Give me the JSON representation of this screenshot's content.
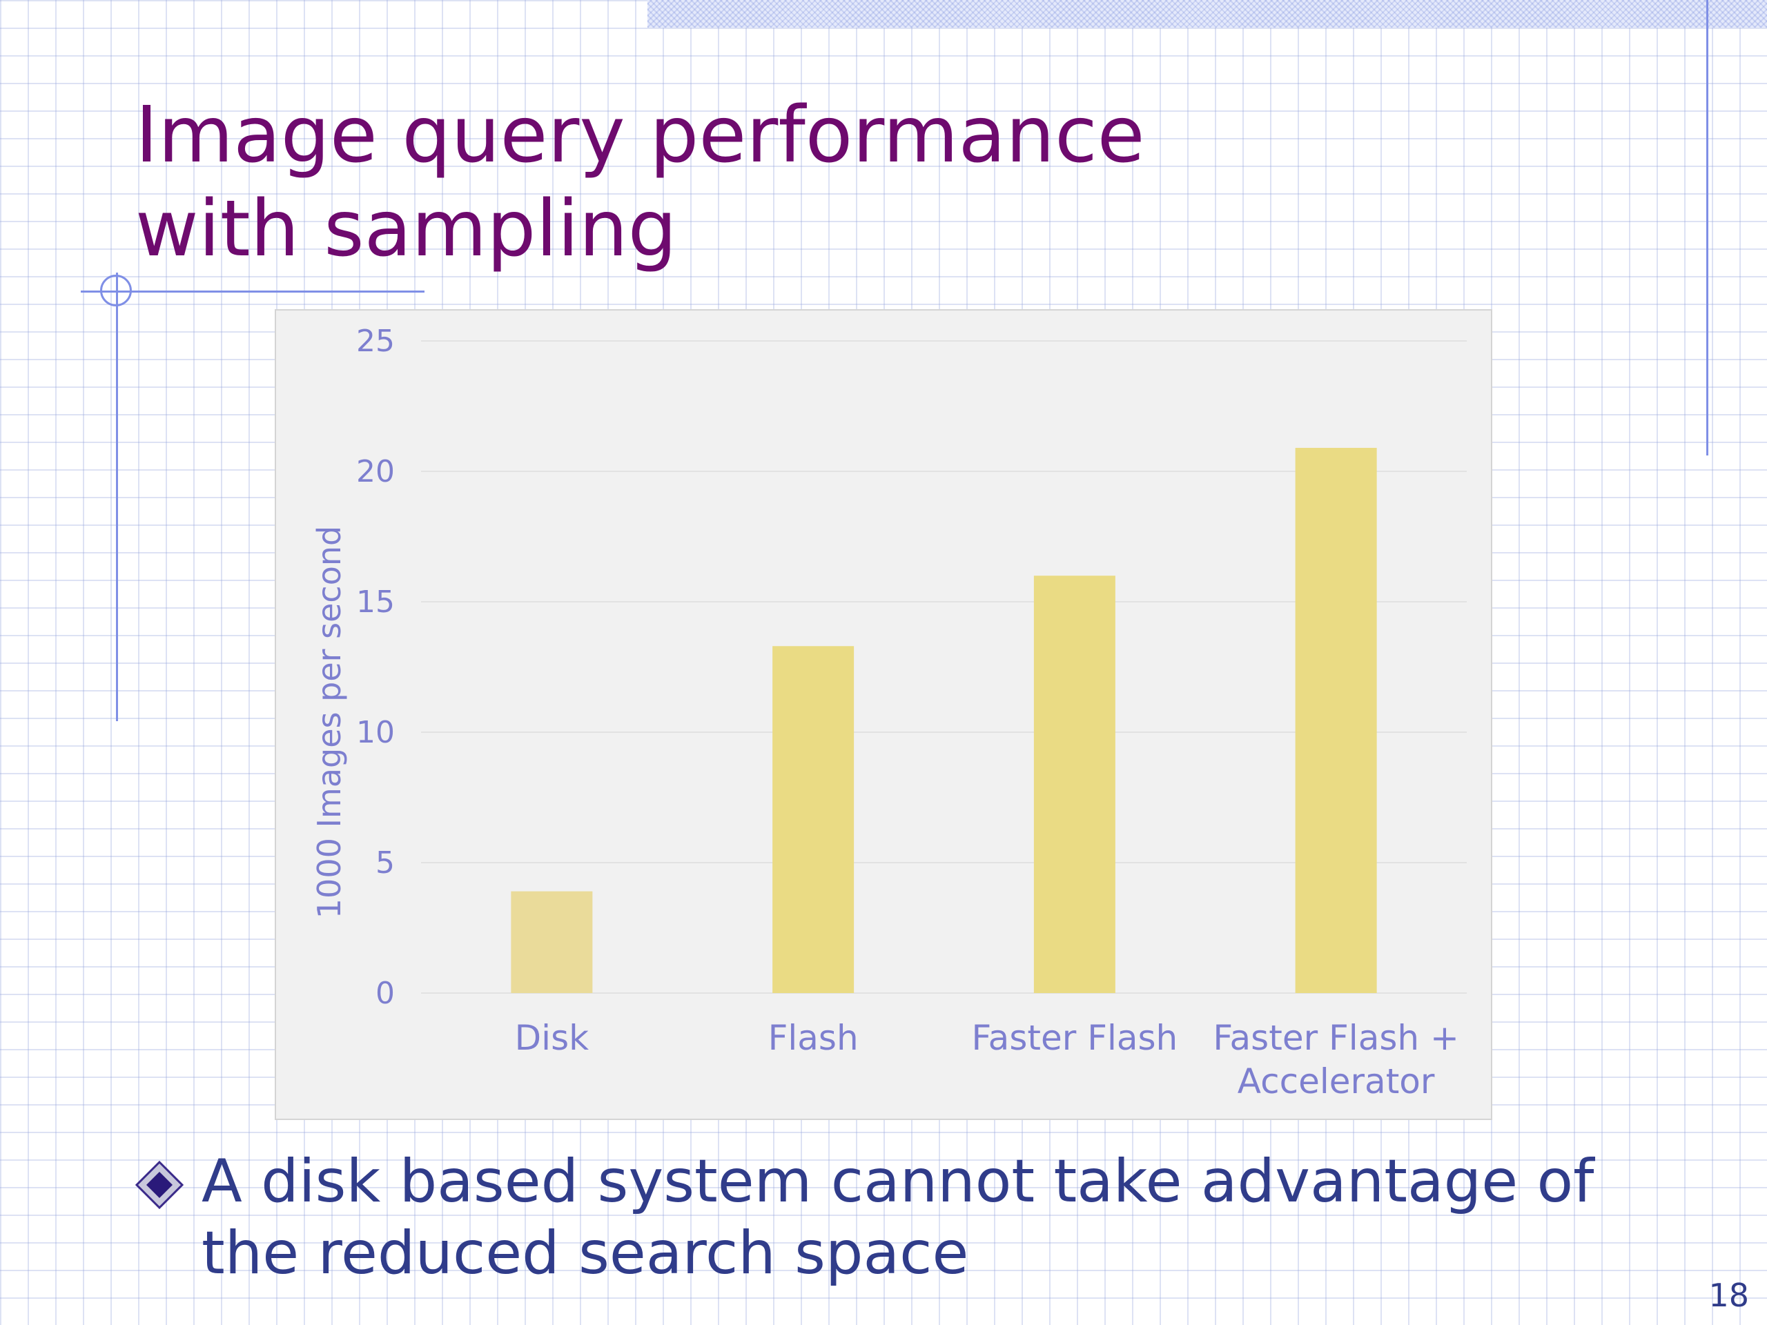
{
  "slide": {
    "title_lines": [
      "Image query performance",
      "with sampling"
    ],
    "bullet_lines": [
      "A disk based system cannot take advantage of",
      "the reduced search space"
    ],
    "page_number": "18"
  },
  "colors": {
    "title": "#6e0a6e",
    "body_text": "#303c8a",
    "axis_text": "#7d7fcf",
    "bar": "#eadb84",
    "bar_disk": "#eadb9a",
    "plot_background": "#f1f1f1",
    "decoration": "#7f8fe6"
  },
  "icons": {
    "bullet": "diamond-bullet-icon"
  },
  "chart_data": {
    "type": "bar",
    "title": "",
    "categories": [
      [
        "Disk"
      ],
      [
        "Flash"
      ],
      [
        "Faster Flash"
      ],
      [
        "Faster Flash +",
        "Accelerator"
      ]
    ],
    "values": [
      3.9,
      13.3,
      16,
      20.9
    ],
    "xlabel": "",
    "ylabel": "1000 Images per second",
    "ylim": [
      0,
      25
    ],
    "yticks": [
      "0",
      "5",
      "10",
      "15",
      "20",
      "25"
    ],
    "grid": true,
    "legend": "none"
  }
}
